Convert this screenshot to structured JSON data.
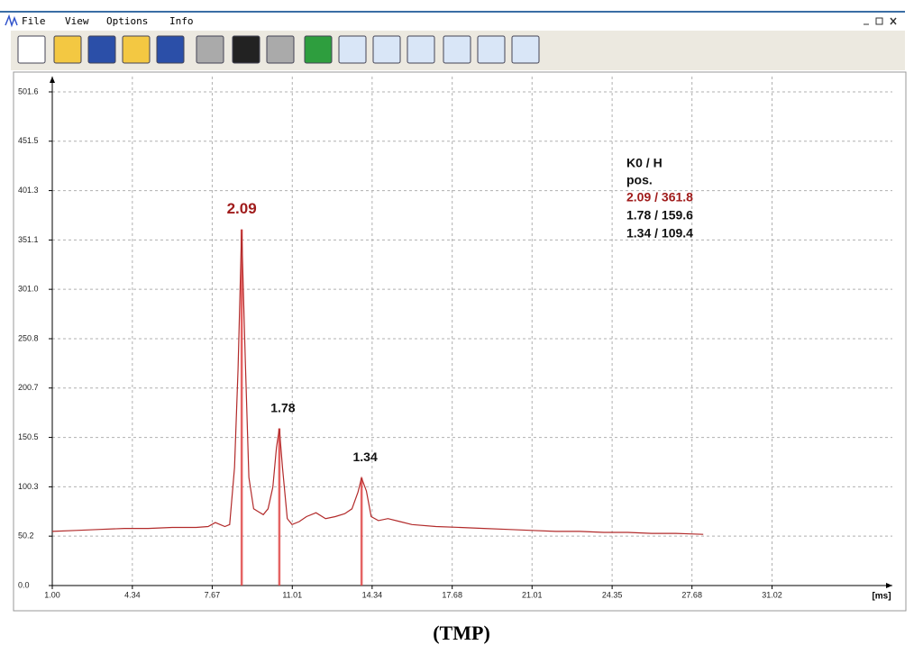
{
  "window": {
    "menu": [
      "File",
      "View",
      "Options",
      "Info"
    ]
  },
  "chart_data": {
    "type": "line",
    "x_unit": "[ms]",
    "xlim": [
      1,
      36
    ],
    "xticks": [
      {
        "value": 1,
        "label": "1.00"
      },
      4.34,
      7.67,
      11.01,
      14.34,
      17.68,
      21.01,
      24.35,
      27.68,
      31.02
    ],
    "ylim": [
      0,
      517
    ],
    "yticks": [
      {
        "value": 0,
        "label": "0.0"
      },
      50.2,
      100.3,
      150.5,
      200.7,
      250.8,
      {
        "value": 301,
        "label": "301.0"
      },
      351.1,
      401.3,
      451.5,
      501.6
    ],
    "grid": true,
    "color": "#b22a2a",
    "x": [
      1,
      2,
      3,
      4,
      5,
      6,
      7,
      7.5,
      7.8,
      8.0,
      8.2,
      8.4,
      8.6,
      8.75,
      8.9,
      9.05,
      9.2,
      9.4,
      9.6,
      9.8,
      10.0,
      10.2,
      10.35,
      10.47,
      10.6,
      10.8,
      11.0,
      11.3,
      11.6,
      12.0,
      12.4,
      12.8,
      13.2,
      13.5,
      13.75,
      13.9,
      14.1,
      14.3,
      14.6,
      15.0,
      15.5,
      16.0,
      17,
      18,
      19,
      20,
      21,
      22,
      23,
      24,
      25,
      26,
      27,
      28.15
    ],
    "values": [
      55,
      56,
      57,
      58,
      58,
      59,
      59,
      60,
      64,
      62,
      60,
      62,
      120,
      220,
      361.8,
      230,
      110,
      78,
      75,
      72,
      78,
      100,
      140,
      159.6,
      120,
      68,
      62,
      65,
      70,
      74,
      68,
      70,
      73,
      78,
      95,
      109.4,
      96,
      70,
      66,
      68,
      65,
      62,
      60,
      59,
      58,
      57,
      56,
      55,
      55,
      54,
      54,
      53,
      53,
      52
    ],
    "peaks": [
      {
        "label": "2.09",
        "x": 8.9,
        "height": 361.8,
        "color": "#a01c1c"
      },
      {
        "label": "1.78",
        "x": 10.47,
        "height": 159.6,
        "color": "#111111"
      },
      {
        "label": "1.34",
        "x": 13.9,
        "height": 109.4,
        "color": "#111111"
      }
    ],
    "legend": {
      "title": "K0 / H",
      "subtitle": "pos.",
      "rows": [
        {
          "text": "2.09 / 361.8",
          "color": "#a01c1c"
        },
        {
          "text": "1.78 / 159.6",
          "color": "#111111"
        },
        {
          "text": "1.34 / 109.4",
          "color": "#111111"
        }
      ]
    }
  },
  "caption": "(TMP)"
}
